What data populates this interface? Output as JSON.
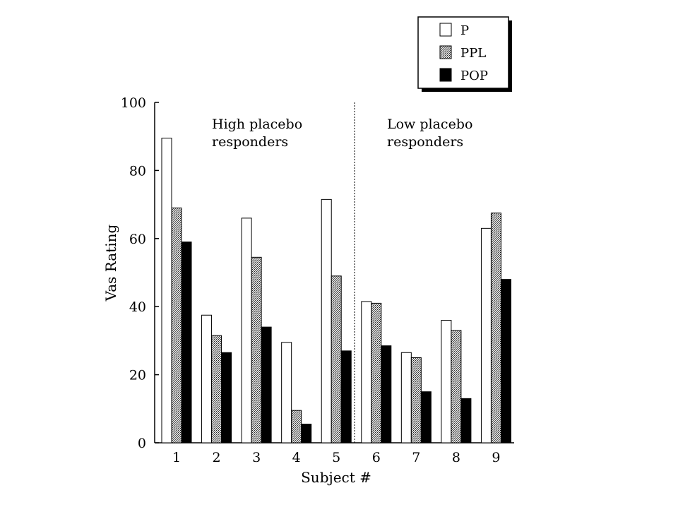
{
  "chart_data": {
    "type": "bar",
    "xlabel": "Subject #",
    "ylabel": "Vas Rating",
    "ylim": [
      0,
      100
    ],
    "yticks": [
      "0",
      "20",
      "40",
      "60",
      "80",
      "100"
    ],
    "categories": [
      "1",
      "2",
      "3",
      "4",
      "5",
      "6",
      "7",
      "8",
      "9"
    ],
    "series": [
      {
        "name": "P",
        "pattern": "white",
        "values": [
          89.5,
          37.5,
          66,
          29.5,
          71.5,
          41.5,
          26.5,
          36,
          63
        ]
      },
      {
        "name": "PPL",
        "pattern": "stipple",
        "values": [
          69,
          31.5,
          54.5,
          9.5,
          49,
          41,
          25,
          33,
          67.5
        ]
      },
      {
        "name": "POP",
        "pattern": "black",
        "values": [
          59,
          26.5,
          34,
          5.5,
          27,
          28.5,
          15,
          13,
          48
        ]
      }
    ],
    "annotations": {
      "left_group": [
        "High placebo",
        "responders"
      ],
      "right_group": [
        "Low placebo",
        "responders"
      ]
    },
    "divider_after_category": "5",
    "grid": false,
    "legend_position": "top-right"
  },
  "colors": {
    "P": "#ffffff",
    "PPL": "#9a9a9a",
    "POP": "#000000",
    "axis": "#000000"
  }
}
